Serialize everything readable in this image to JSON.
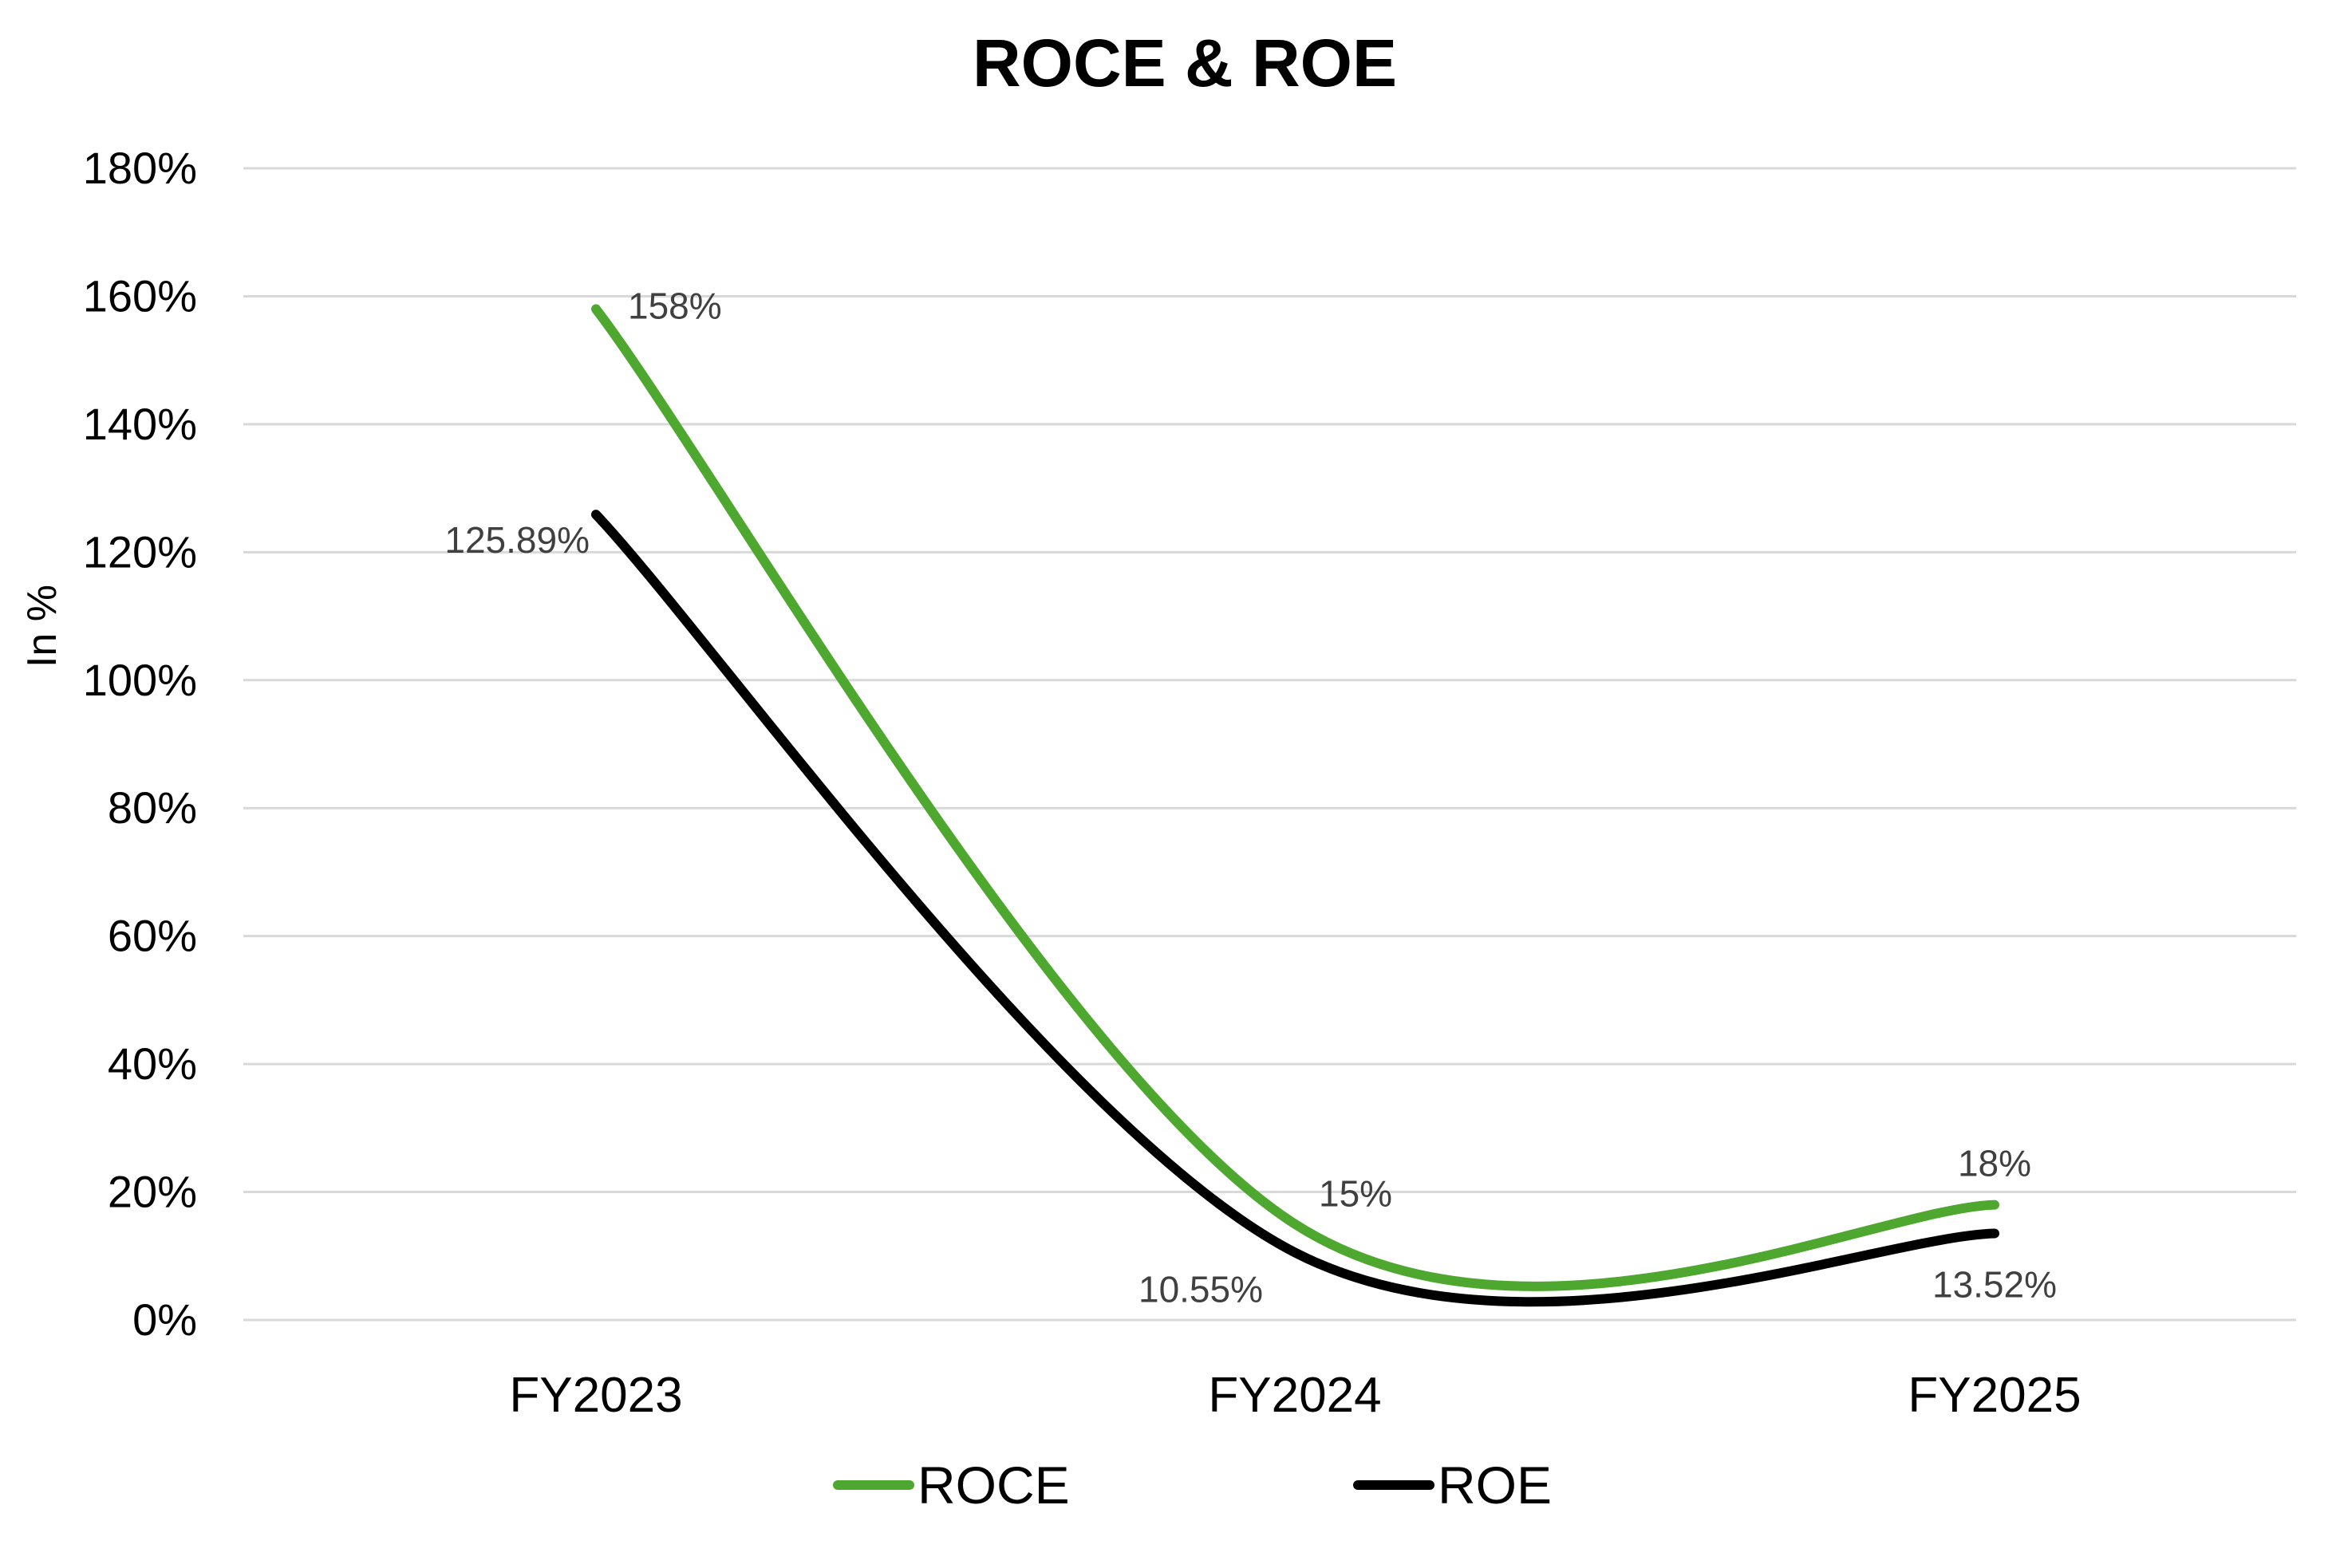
{
  "chart_data": {
    "type": "line",
    "title": "ROCE & ROE",
    "ylabel": "In %",
    "xlabel": "",
    "categories": [
      "FY2023",
      "FY2024",
      "FY2025"
    ],
    "ylim": [
      0,
      180
    ],
    "yticks": [
      0,
      20,
      40,
      60,
      80,
      100,
      120,
      140,
      160,
      180
    ],
    "ytick_labels": [
      "0%",
      "20%",
      "40%",
      "60%",
      "80%",
      "100%",
      "120%",
      "140%",
      "160%",
      "180%"
    ],
    "smooth": true,
    "grid": true,
    "legend_position": "bottom",
    "series": [
      {
        "name": "ROCE",
        "values": [
          158,
          15,
          18
        ],
        "labels": [
          "158%",
          "15%",
          "18%"
        ],
        "color": "#4ea72e"
      },
      {
        "name": "ROE",
        "values": [
          125.89,
          10.55,
          13.52
        ],
        "labels": [
          "125.89%",
          "10.55%",
          "13.52%"
        ],
        "color": "#000000"
      }
    ]
  }
}
